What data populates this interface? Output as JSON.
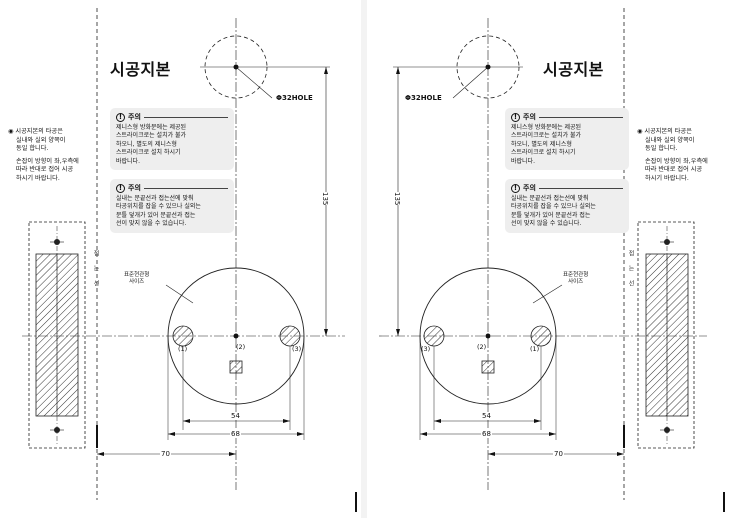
{
  "pages": [
    {
      "title": "시공지본",
      "hole_label": "Φ32HOLE",
      "side_note": {
        "line1": "시공지본의 타공은",
        "line2": "실내와 실외 양쪽이",
        "line3": "동일 합니다.",
        "line4": "손잡이 방향이 좌,우측에",
        "line5": "따라 반대로 접어 시공",
        "line6": "하시기 바랍니다."
      },
      "caution1": {
        "heading": "주의",
        "lines": [
          "제니스형 방화문에는 제공된",
          "스트라이크로는 설치가 불가",
          "하오니, 별도의 제니스형",
          "스트라이크로 설치 하시기",
          "바랍니다."
        ]
      },
      "caution2": {
        "heading": "주의",
        "lines": [
          "실내는 문끝선과 접는선에 맞춰",
          "타공위치를 잡을 수 있으나 실외는",
          "문틀 덮개가 있어 문끝선과 접는",
          "선이 맞지 않을 수 있습니다."
        ]
      },
      "standard_label": {
        "line1": "표준현관형",
        "line2": "사이즈"
      },
      "hole_numbers": [
        "(1)",
        "(2)",
        "(3)"
      ],
      "dimensions": {
        "vertical": "135",
        "inner": "54",
        "outer": "68",
        "offset": "70"
      },
      "side_vertical_text": "접는선"
    },
    {
      "title": "시공지본",
      "hole_label": "Φ32HOLE",
      "side_note": {
        "line1": "시공지본의 타공은",
        "line2": "실내와 실외 양쪽이",
        "line3": "동일 합니다.",
        "line4": "손잡이 방향이 좌,우측에",
        "line5": "따라 반대로 접어 시공",
        "line6": "하시기 바랍니다."
      },
      "caution1": {
        "heading": "주의",
        "lines": [
          "제니스형 방화문에는 제공된",
          "스트라이크로는 설치가 불가",
          "하오니, 별도의 제니스형",
          "스트라이크로 설치 하시기",
          "바랍니다."
        ]
      },
      "caution2": {
        "heading": "주의",
        "lines": [
          "실내는 문끝선과 접는선에 맞춰",
          "타공위치를 잡을 수 있으나 실외는",
          "문틀 덮개가 있어 문끝선과 접는",
          "선이 맞지 않을 수 있습니다."
        ]
      },
      "standard_label": {
        "line1": "표준현관형",
        "line2": "사이즈"
      },
      "hole_numbers": [
        "(3)",
        "(2)",
        "(1)"
      ],
      "dimensions": {
        "vertical": "135",
        "inner": "54",
        "outer": "68",
        "offset": "70"
      },
      "side_vertical_text": "접는선"
    }
  ]
}
